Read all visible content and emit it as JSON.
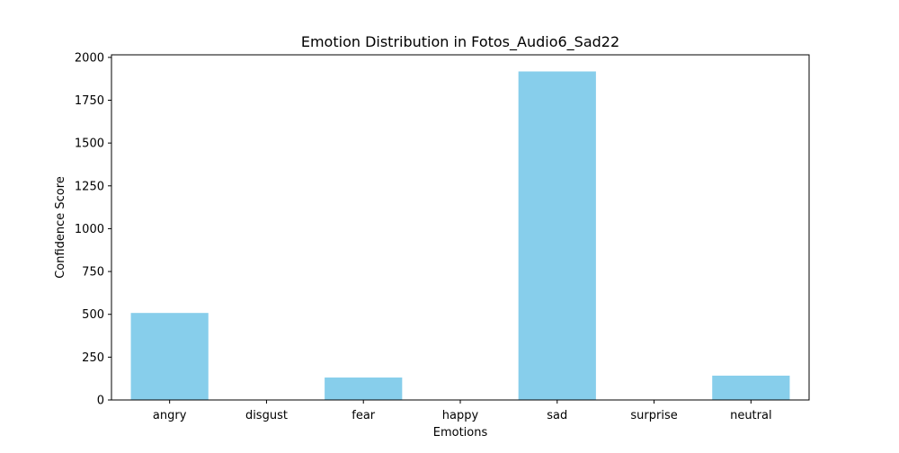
{
  "chart_data": {
    "type": "bar",
    "title": "Emotion Distribution in Fotos_Audio6_Sad22",
    "xlabel": "Emotions",
    "ylabel": "Confidence Score",
    "categories": [
      "angry",
      "disgust",
      "fear",
      "happy",
      "sad",
      "surprise",
      "neutral"
    ],
    "values": [
      508,
      0,
      131,
      0,
      1918,
      0,
      142
    ],
    "ylim": [
      0,
      2015
    ],
    "yticks": [
      0,
      250,
      500,
      750,
      1000,
      1250,
      1500,
      1750,
      2000
    ],
    "bar_color": "#87ceeb",
    "grid": false,
    "legend": "none"
  }
}
